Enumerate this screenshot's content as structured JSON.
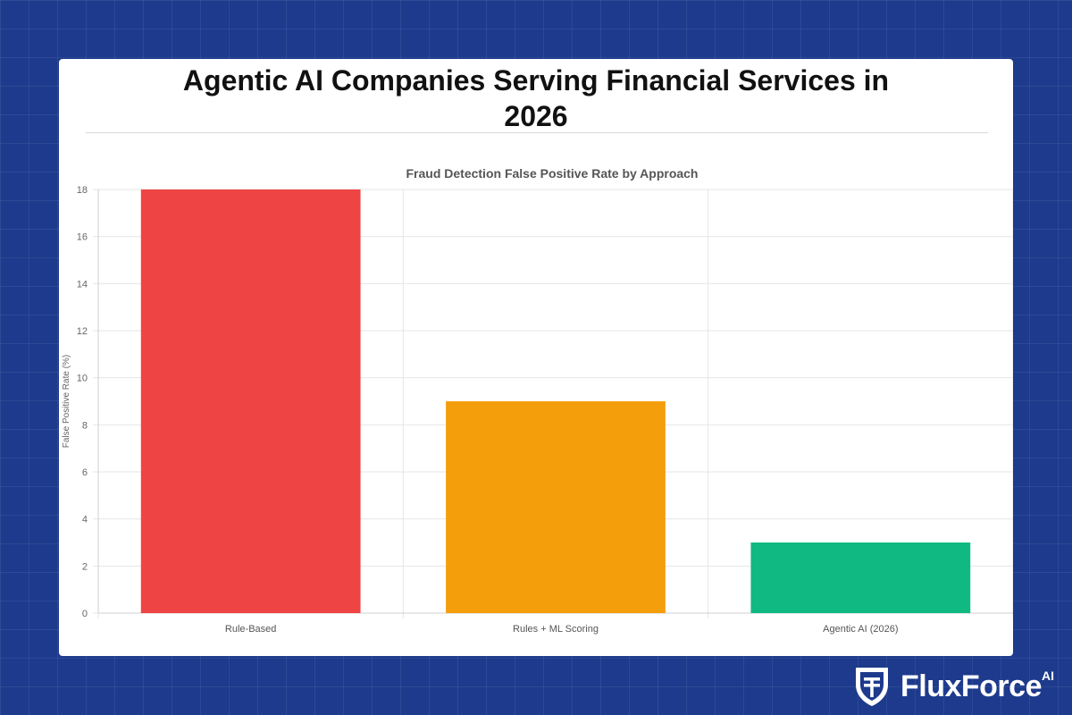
{
  "page": {
    "title_line1": "Agentic AI Companies Serving Financial Services in",
    "title_line2": "2026"
  },
  "chart_data": {
    "type": "bar",
    "title": "Fraud Detection False Positive Rate by Approach",
    "xlabel": "",
    "ylabel": "False Positive Rate (%)",
    "categories": [
      "Rule-Based",
      "Rules + ML Scoring",
      "Agentic AI (2026)"
    ],
    "values": [
      18,
      9,
      3
    ],
    "colors": [
      "#ef4444",
      "#f59e0b",
      "#10b981"
    ],
    "ylim": [
      0,
      18
    ],
    "yticks": [
      0,
      2,
      4,
      6,
      8,
      10,
      12,
      14,
      16,
      18
    ],
    "grid": true,
    "legend": "none"
  },
  "logo": {
    "name": "FluxForce",
    "suffix": "AI",
    "icon": "shield-icon"
  }
}
